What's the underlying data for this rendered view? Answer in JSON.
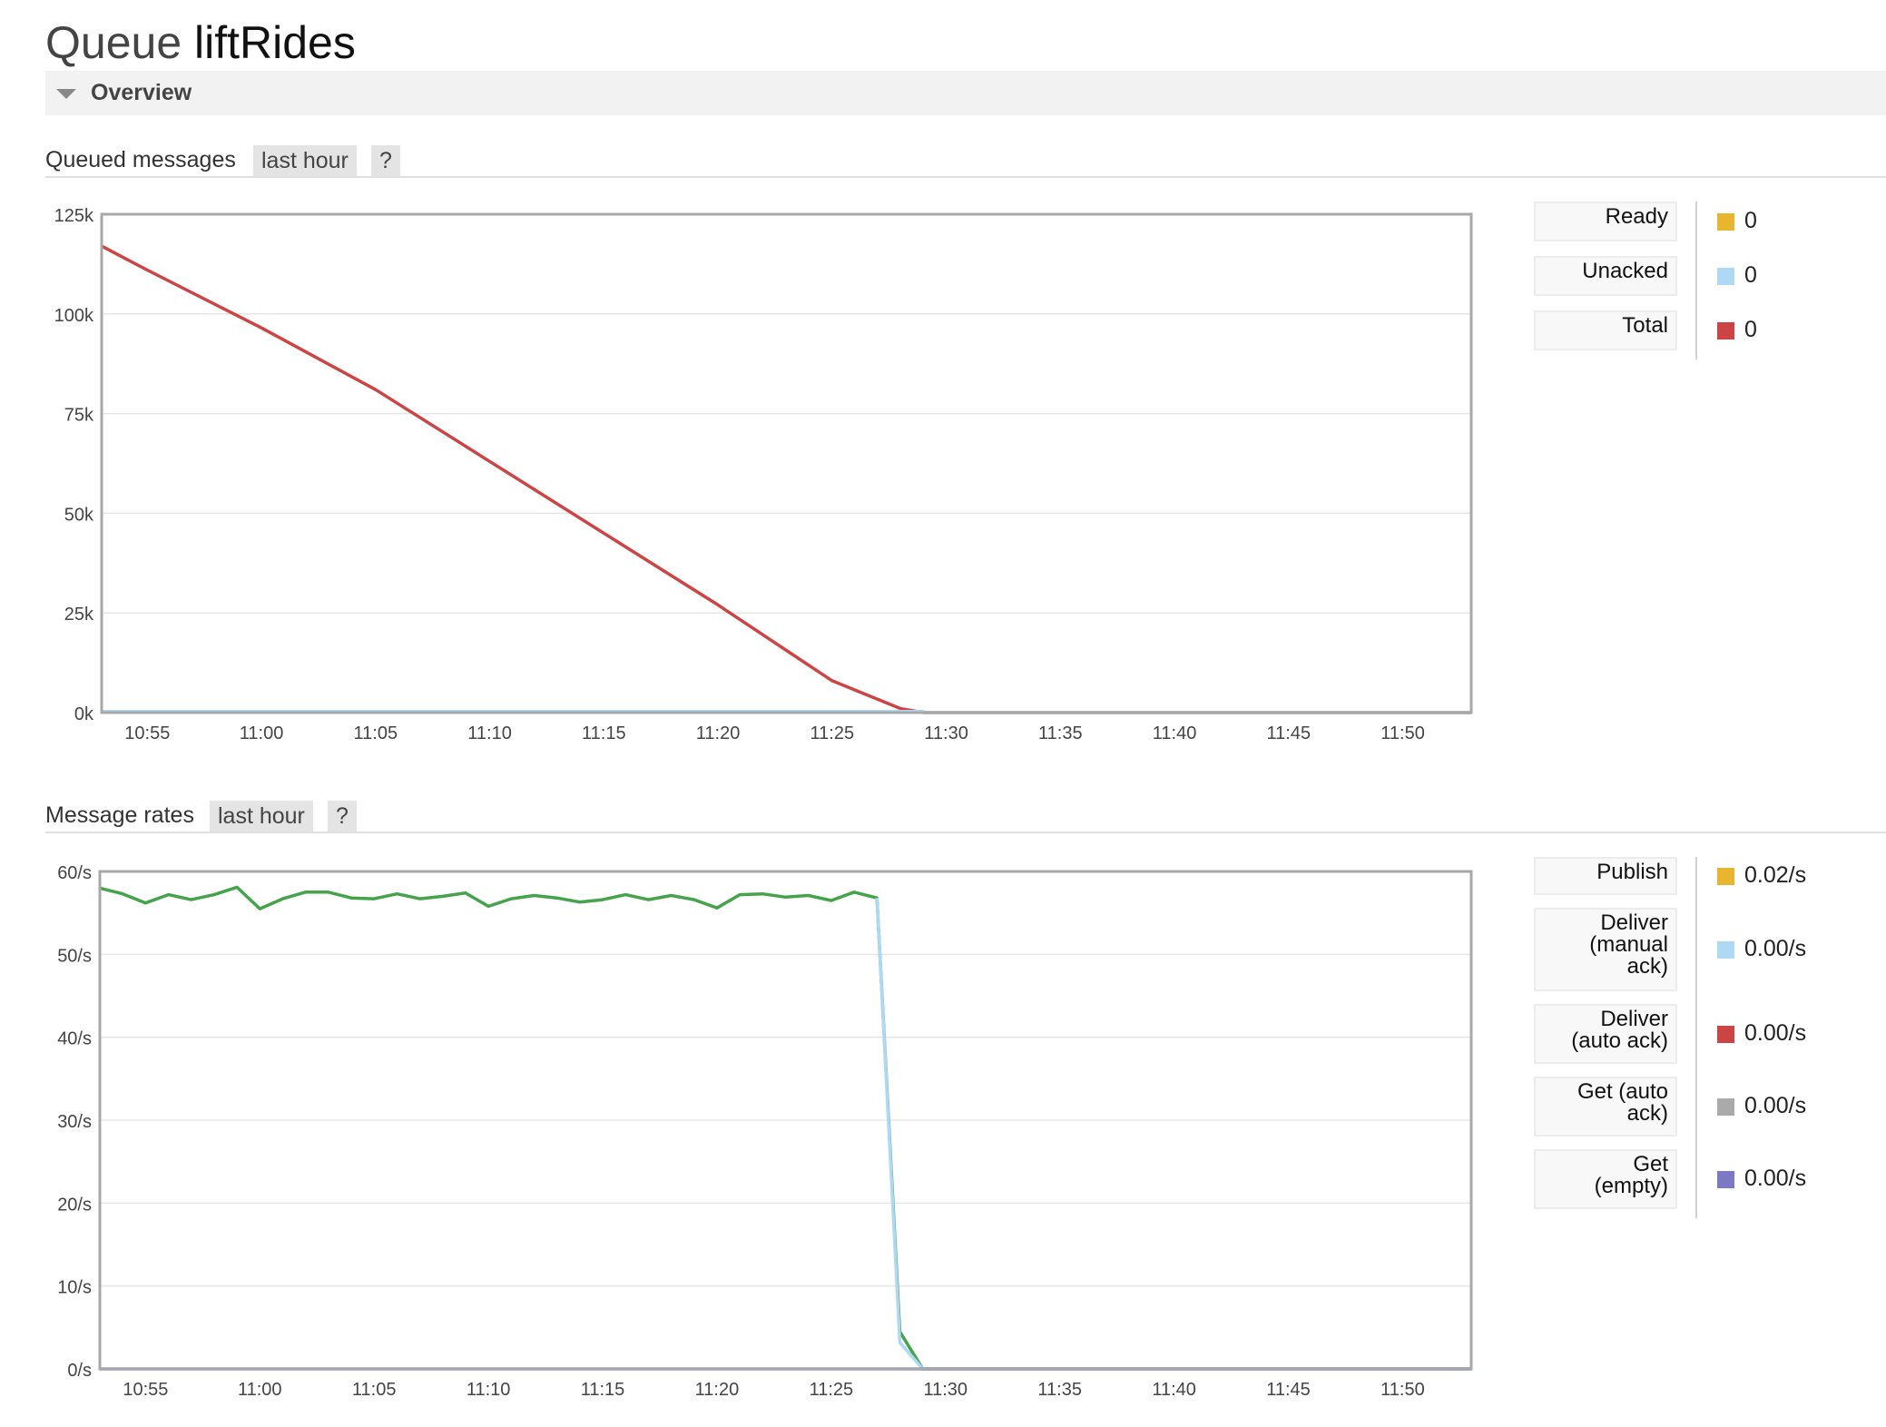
{
  "page": {
    "title_prefix": "Queue",
    "queue_name": "liftRides",
    "overview_label": "Overview"
  },
  "colors": {
    "ready": "#e8b62e",
    "unacked": "#aed8f4",
    "total": "#cc4444",
    "publish": "#e8b62e",
    "deliver_manual": "#aed8f4",
    "deliver_auto": "#cc4444",
    "get_auto": "#aaaaaa",
    "get_empty": "#7b79c4",
    "ack_line": "#44a34b"
  },
  "queued": {
    "title": "Queued messages",
    "range_label": "last hour",
    "help_label": "?",
    "legend": [
      {
        "label": "Ready",
        "value": "0",
        "color": "#e8b62e"
      },
      {
        "label": "Unacked",
        "value": "0",
        "color": "#aed8f4"
      },
      {
        "label": "Total",
        "value": "0",
        "color": "#cc4444"
      }
    ]
  },
  "rates": {
    "title": "Message rates",
    "range_label": "last hour",
    "help_label": "?",
    "legend": [
      {
        "label": "Publish",
        "value": "0.02/s",
        "color": "#e8b62e"
      },
      {
        "label": "Deliver\n(manual\nack)",
        "value": "0.00/s",
        "color": "#aed8f4"
      },
      {
        "label": "Deliver\n(auto ack)",
        "value": "0.00/s",
        "color": "#cc4444"
      },
      {
        "label": "Get (auto\nack)",
        "value": "0.00/s",
        "color": "#aaaaaa"
      },
      {
        "label": "Get\n(empty)",
        "value": "0.00/s",
        "color": "#7b79c4"
      }
    ]
  },
  "chart_data": [
    {
      "type": "line",
      "title": "Queued messages",
      "xlabel": "",
      "ylabel": "",
      "x_ticks": [
        "10:55",
        "11:00",
        "11:05",
        "11:10",
        "11:15",
        "11:20",
        "11:25",
        "11:30",
        "11:35",
        "11:40",
        "11:45",
        "11:50"
      ],
      "y_ticks": [
        "0k",
        "25k",
        "50k",
        "75k",
        "100k",
        "125k"
      ],
      "xlim": [
        "10:53",
        "11:53"
      ],
      "ylim": [
        0,
        125000
      ],
      "grid": true,
      "series": [
        {
          "name": "Total",
          "color": "#cc4444",
          "points": [
            [
              "10:53",
              117000
            ],
            [
              "10:55",
              111000
            ],
            [
              "11:00",
              96500
            ],
            [
              "11:05",
              81000
            ],
            [
              "11:10",
              63000
            ],
            [
              "11:15",
              45000
            ],
            [
              "11:20",
              27000
            ],
            [
              "11:25",
              8000
            ],
            [
              "11:28",
              1000
            ],
            [
              "11:29",
              0
            ],
            [
              "11:53",
              0
            ]
          ]
        },
        {
          "name": "Unacked",
          "color": "#aed8f4",
          "points": [
            [
              "10:53",
              300
            ],
            [
              "11:29",
              300
            ],
            [
              "11:29",
              0
            ],
            [
              "11:53",
              0
            ]
          ]
        }
      ]
    },
    {
      "type": "line",
      "title": "Message rates",
      "xlabel": "",
      "ylabel": "",
      "x_ticks": [
        "10:55",
        "11:00",
        "11:05",
        "11:10",
        "11:15",
        "11:20",
        "11:25",
        "11:30",
        "11:35",
        "11:40",
        "11:45",
        "11:50"
      ],
      "y_ticks": [
        "0/s",
        "10/s",
        "20/s",
        "30/s",
        "40/s",
        "50/s",
        "60/s"
      ],
      "xlim": [
        "10:53",
        "11:53"
      ],
      "ylim": [
        0,
        60
      ],
      "grid": true,
      "series": [
        {
          "color": "#44a34b",
          "points": [
            [
              "10:53",
              58
            ],
            [
              "10:54",
              57.3
            ],
            [
              "10:55",
              56.2
            ],
            [
              "10:56",
              57.2
            ],
            [
              "10:57",
              56.6
            ],
            [
              "10:58",
              57.2
            ],
            [
              "10:59",
              58.1
            ],
            [
              "11:00",
              55.5
            ],
            [
              "11:01",
              56.7
            ],
            [
              "11:02",
              57.5
            ],
            [
              "11:03",
              57.5
            ],
            [
              "11:04",
              56.8
            ],
            [
              "11:05",
              56.7
            ],
            [
              "11:06",
              57.3
            ],
            [
              "11:07",
              56.7
            ],
            [
              "11:08",
              57.0
            ],
            [
              "11:09",
              57.4
            ],
            [
              "11:10",
              55.8
            ],
            [
              "11:11",
              56.7
            ],
            [
              "11:12",
              57.1
            ],
            [
              "11:13",
              56.8
            ],
            [
              "11:14",
              56.3
            ],
            [
              "11:15",
              56.6
            ],
            [
              "11:16",
              57.2
            ],
            [
              "11:17",
              56.6
            ],
            [
              "11:18",
              57.1
            ],
            [
              "11:19",
              56.6
            ],
            [
              "11:20",
              55.6
            ],
            [
              "11:21",
              57.2
            ],
            [
              "11:22",
              57.3
            ],
            [
              "11:23",
              56.9
            ],
            [
              "11:24",
              57.1
            ],
            [
              "11:25",
              56.5
            ],
            [
              "11:26",
              57.5
            ],
            [
              "11:27",
              56.8
            ],
            [
              "11:28",
              4.5
            ],
            [
              "11:29",
              0
            ],
            [
              "11:53",
              0
            ]
          ]
        },
        {
          "name": "Deliver (manual ack)",
          "color": "#aed8f4",
          "points": [
            [
              "11:27",
              56.8
            ],
            [
              "11:28",
              3.2
            ],
            [
              "11:29",
              0
            ],
            [
              "11:53",
              0
            ]
          ]
        },
        {
          "name": "Get (empty)",
          "color": "#7b79c4",
          "points": [
            [
              "10:53",
              0
            ],
            [
              "11:53",
              0
            ]
          ]
        }
      ]
    }
  ]
}
